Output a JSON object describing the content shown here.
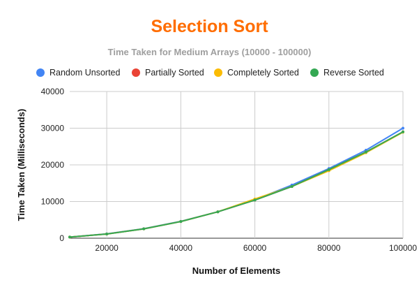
{
  "chart_data": {
    "type": "line",
    "title": "Selection Sort",
    "subtitle": "Time Taken for Medium Arrays (10000 - 100000)",
    "xlabel": "Number of Elements",
    "ylabel": "Time Taken (Milliseconds)",
    "x": [
      10000,
      20000,
      30000,
      40000,
      50000,
      60000,
      70000,
      80000,
      90000,
      100000
    ],
    "xlim": [
      10000,
      100000
    ],
    "ylim": [
      0,
      40000
    ],
    "x_ticks": [
      "20000",
      "40000",
      "60000",
      "80000",
      "100000"
    ],
    "y_ticks": [
      "0",
      "10000",
      "20000",
      "30000",
      "40000"
    ],
    "grid": true,
    "legend_position": "top",
    "series": [
      {
        "name": "Random Unsorted",
        "color": "#4285f4",
        "values": [
          300,
          1200,
          2600,
          4600,
          7200,
          10500,
          14500,
          19000,
          24000,
          30000
        ]
      },
      {
        "name": "Partially Sorted",
        "color": "#ea4335",
        "values": [
          300,
          1150,
          2550,
          4550,
          7200,
          10400,
          14100,
          18700,
          23500,
          29000
        ]
      },
      {
        "name": "Completely Sorted",
        "color": "#fbbc04",
        "values": [
          300,
          1150,
          2550,
          4550,
          7200,
          10700,
          14100,
          18400,
          23300,
          28900
        ]
      },
      {
        "name": "Reverse Sorted",
        "color": "#34a853",
        "values": [
          300,
          1150,
          2550,
          4550,
          7200,
          10400,
          14100,
          18700,
          23500,
          29000
        ]
      }
    ]
  }
}
